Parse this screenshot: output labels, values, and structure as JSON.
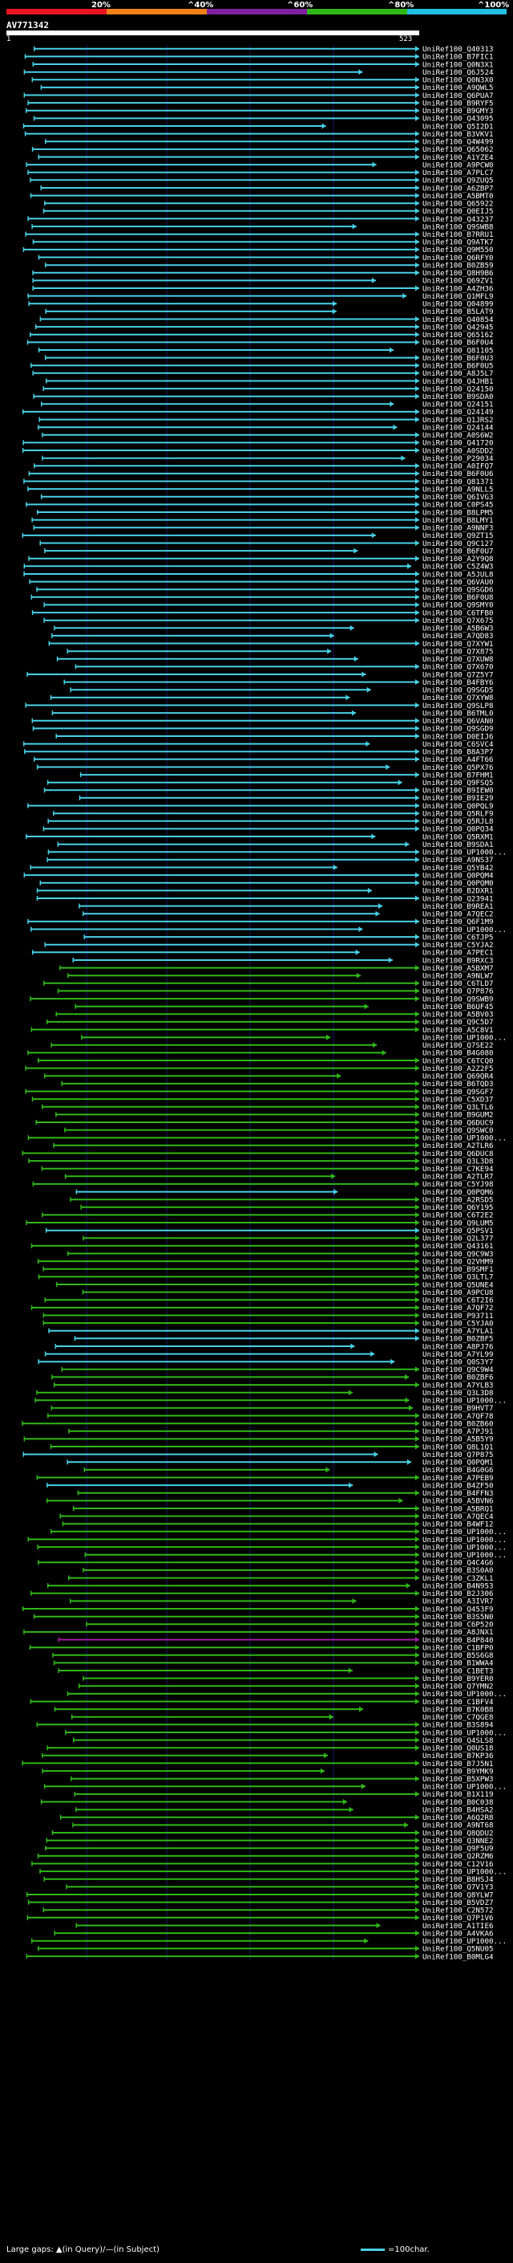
{
  "colors": {
    "identity_bands": [
      "#e8141e",
      "#f08018",
      "#8020a0",
      "#30b818",
      "#20c0e0"
    ],
    "hit_high": "#48d1e6",
    "hit_mid": "#30b818",
    "hit_low": "#a020a0",
    "guide": "#1a1a6e"
  },
  "colorbar": {
    "labels": [
      "20%",
      "^40%",
      "^60%",
      "^80%",
      "^100%"
    ]
  },
  "query": {
    "name": "AV771342",
    "start": "1",
    "end": "523"
  },
  "footer": {
    "legend": "Large gaps: ▲(in Query)/—(in Subject)",
    "scale": "=100char."
  },
  "hits": [
    [
      "UniRef100_Q40313",
      "c"
    ],
    [
      "UniRef100_B7FIC1",
      "c"
    ],
    [
      "UniRef100_Q0N3X1",
      "c"
    ],
    [
      "UniRef100_Q6J524",
      "c"
    ],
    [
      "UniRef100_Q0N3X0",
      "c"
    ],
    [
      "UniRef100_A9QWL5",
      "c"
    ],
    [
      "UniRef100_Q6PUA7",
      "c"
    ],
    [
      "UniRef100_B9RYF5",
      "c"
    ],
    [
      "UniRef100_B9GMY3",
      "c"
    ],
    [
      "UniRef100_Q43095",
      "c"
    ],
    [
      "UniRef100_Q5I2D1",
      "c"
    ],
    [
      "UniRef100_B3VKV1",
      "c"
    ],
    [
      "UniRef100_Q4W499",
      "c"
    ],
    [
      "UniRef100_Q65062",
      "c"
    ],
    [
      "UniRef100_A1YZE4",
      "c"
    ],
    [
      "UniRef100_A9PCW0",
      "c"
    ],
    [
      "UniRef100_A7PLC7",
      "c"
    ],
    [
      "UniRef100_Q9ZUQ5",
      "c"
    ],
    [
      "UniRef100_A6ZBP7",
      "c"
    ],
    [
      "UniRef100_A5BMT0",
      "c"
    ],
    [
      "UniRef100_Q65922",
      "c"
    ],
    [
      "UniRef100_Q0EIJ5",
      "c"
    ],
    [
      "UniRef100_Q43237",
      "c"
    ],
    [
      "UniRef100_Q9SWB8",
      "c"
    ],
    [
      "UniRef100_B7RRU1",
      "c"
    ],
    [
      "UniRef100_Q9ATK7",
      "c"
    ],
    [
      "UniRef100_Q9M550",
      "c"
    ],
    [
      "UniRef100_Q6RFY0",
      "c"
    ],
    [
      "UniRef100_B0ZB59",
      "c"
    ],
    [
      "UniRef100_Q8H9B6",
      "c"
    ],
    [
      "UniRef100_Q69ZV1",
      "c"
    ],
    [
      "UniRef100_A4ZH36",
      "c"
    ],
    [
      "UniRef100_Q1MFL9",
      "c"
    ],
    [
      "UniRef100_Q04899",
      "c"
    ],
    [
      "UniRef100_B5LAT9",
      "c"
    ],
    [
      "UniRef100_Q40854",
      "c"
    ],
    [
      "UniRef100_Q42945",
      "c"
    ],
    [
      "UniRef100_Q65162",
      "c"
    ],
    [
      "UniRef100_B6F0U4",
      "c"
    ],
    [
      "UniRef100_Q81105",
      "c"
    ],
    [
      "UniRef100_B6F0U3",
      "c"
    ],
    [
      "UniRef100_B6F0U5",
      "c"
    ],
    [
      "UniRef100_A8J5L7",
      "c"
    ],
    [
      "UniRef100_Q4JHB1",
      "c"
    ],
    [
      "UniRef100_Q24150",
      "c"
    ],
    [
      "UniRef100_B9SDA0",
      "c"
    ],
    [
      "UniRef100_Q24151",
      "c"
    ],
    [
      "UniRef100_Q24149",
      "c"
    ],
    [
      "UniRef100_Q1JRS2",
      "c"
    ],
    [
      "UniRef100_Q24144",
      "c"
    ],
    [
      "UniRef100_A0S6W2",
      "c"
    ],
    [
      "UniRef100_Q41720",
      "c"
    ],
    [
      "UniRef100_A0SDD2",
      "c"
    ],
    [
      "UniRef100_P29034",
      "c"
    ],
    [
      "UniRef100_A0IFQ7",
      "c"
    ],
    [
      "UniRef100_B6F0U6",
      "c"
    ],
    [
      "UniRef100_Q81371",
      "c"
    ],
    [
      "UniRef100_A9NLL5",
      "c"
    ],
    [
      "UniRef100_Q6IVG3",
      "c"
    ],
    [
      "UniRef100_C0PS45",
      "c"
    ],
    [
      "UniRef100_B8LPM5",
      "c"
    ],
    [
      "UniRef100_B8LMY1",
      "c"
    ],
    [
      "UniRef100_A9NNF3",
      "c"
    ],
    [
      "UniRef100_Q9ZT15",
      "c"
    ],
    [
      "UniRef100_Q9C127",
      "c"
    ],
    [
      "UniRef100_B6F0U7",
      "c"
    ],
    [
      "UniRef100_A2Y9Q8",
      "c"
    ],
    [
      "UniRef100_C5Z4W3",
      "c"
    ],
    [
      "UniRef100_A5JUL8",
      "c"
    ],
    [
      "UniRef100_Q6VAU0",
      "c"
    ],
    [
      "UniRef100_Q9SGD6",
      "c"
    ],
    [
      "UniRef100_B6F0U8",
      "c"
    ],
    [
      "UniRef100_Q9SMY0",
      "c"
    ],
    [
      "UniRef100_C6TFB0",
      "c"
    ],
    [
      "UniRef100_Q7X675",
      "c"
    ],
    [
      "UniRef100_A5B6W3",
      "c"
    ],
    [
      "UniRef100_A7QD83",
      "c"
    ],
    [
      "UniRef100_Q7XYW1",
      "c"
    ],
    [
      "UniRef100_Q7X875",
      "c"
    ],
    [
      "UniRef100_Q7XUW8",
      "c"
    ],
    [
      "UniRef100_Q7X670",
      "c"
    ],
    [
      "UniRef100_Q7Z5Y7",
      "c"
    ],
    [
      "UniRef100_B4FBY6",
      "c"
    ],
    [
      "UniRef100_Q9SGD5",
      "c"
    ],
    [
      "UniRef100_Q7XYW8",
      "c"
    ],
    [
      "UniRef100_Q9SLP8",
      "c"
    ],
    [
      "UniRef100_B6TML0",
      "c"
    ],
    [
      "UniRef100_Q6VAN0",
      "c"
    ],
    [
      "UniRef100_Q9SGD9",
      "c"
    ],
    [
      "UniRef100_D0EIJ6",
      "c"
    ],
    [
      "UniRef100_C6SVC4",
      "c"
    ],
    [
      "UniRef100_B8A3P7",
      "c"
    ],
    [
      "UniRef100_A4FT66",
      "c"
    ],
    [
      "UniRef100_Q5PX76",
      "c"
    ],
    [
      "UniRef100_B7FHM1",
      "c"
    ],
    [
      "UniRef100_Q9FSQ5",
      "c"
    ],
    [
      "UniRef100_B9IEW0",
      "c"
    ],
    [
      "UniRef100_B9IE29",
      "c"
    ],
    [
      "UniRef100_Q0PQL9",
      "c"
    ],
    [
      "UniRef100_Q5RLF9",
      "c"
    ],
    [
      "UniRef100_Q5RJL8",
      "c"
    ],
    [
      "UniRef100_Q0PQ34",
      "c"
    ],
    [
      "UniRef100_Q5RXM1",
      "c"
    ],
    [
      "UniRef100_B9SDA1",
      "c"
    ],
    [
      "UniRef100_UP1000...",
      "c"
    ],
    [
      "UniRef100_A9NS37",
      "c"
    ],
    [
      "UniRef100_Q5YB42",
      "c"
    ],
    [
      "UniRef100_Q0PQM4",
      "c"
    ],
    [
      "UniRef100_Q0PQM0",
      "c"
    ],
    [
      "UniRef100_B2DXR1",
      "c"
    ],
    [
      "UniRef100_Q23941",
      "c"
    ],
    [
      "UniRef100_B9REA1",
      "c"
    ],
    [
      "UniRef100_A7QEC2",
      "c"
    ],
    [
      "UniRef100_Q6F1M9",
      "c"
    ],
    [
      "UniRef100_UP1000...",
      "c"
    ],
    [
      "UniRef100_C6TJP5",
      "c"
    ],
    [
      "UniRef100_C5YJA2",
      "c"
    ],
    [
      "UniRef100_A7PEC1",
      "c"
    ],
    [
      "UniRef100_B9RXC3",
      "c"
    ],
    [
      "UniRef100_A5BXM7",
      "g"
    ],
    [
      "UniRef100_A9NLW7",
      "g"
    ],
    [
      "UniRef100_C6TLD7",
      "g"
    ],
    [
      "UniRef100_Q7P876",
      "g"
    ],
    [
      "UniRef100_Q9SWB9",
      "g"
    ],
    [
      "UniRef100_B6UF45",
      "g"
    ],
    [
      "UniRef100_A5BV03",
      "g"
    ],
    [
      "UniRef100_Q9C5D7",
      "g"
    ],
    [
      "UniRef100_A5C8V1",
      "g"
    ],
    [
      "UniRef100_UP1000...",
      "g"
    ],
    [
      "UniRef100_Q7SE22",
      "g"
    ],
    [
      "UniRef100_B4G080",
      "g"
    ],
    [
      "UniRef100_C6TCQ0",
      "g"
    ],
    [
      "UniRef100_A2Z2F5",
      "g"
    ],
    [
      "UniRef100_Q69QR4",
      "g"
    ],
    [
      "UniRef100_B6TQD3",
      "g"
    ],
    [
      "UniRef100_Q9SGF7",
      "g"
    ],
    [
      "UniRef100_C5XD37",
      "g"
    ],
    [
      "UniRef100_Q3LTL6",
      "g"
    ],
    [
      "UniRef100_B9GUM2",
      "g"
    ],
    [
      "UniRef100_Q6DUC9",
      "g"
    ],
    [
      "UniRef100_Q9SWC0",
      "g"
    ],
    [
      "UniRef100_UP1000...",
      "g"
    ],
    [
      "UniRef100_A2TLR6",
      "g"
    ],
    [
      "UniRef100_Q6DUC8",
      "g"
    ],
    [
      "UniRef100_Q3L3D8",
      "g"
    ],
    [
      "UniRef100_C7KE94",
      "g"
    ],
    [
      "UniRef100_A2TLR7",
      "g"
    ],
    [
      "UniRef100_C5YJ98",
      "g"
    ],
    [
      "UniRef100_Q0PQM6",
      "c"
    ],
    [
      "UniRef100_A2RSD5",
      "g"
    ],
    [
      "UniRef100_Q6Y195",
      "g"
    ],
    [
      "UniRef100_C6T2E2",
      "g"
    ],
    [
      "UniRef100_Q9LUM5",
      "g"
    ],
    [
      "UniRef100_Q5PSV1",
      "c"
    ],
    [
      "UniRef100_Q2L377",
      "g"
    ],
    [
      "UniRef100_Q43161",
      "g"
    ],
    [
      "UniRef100_Q9C9W3",
      "g"
    ],
    [
      "UniRef100_Q2VHM9",
      "g"
    ],
    [
      "UniRef100_B9SMF1",
      "g"
    ],
    [
      "UniRef100_Q3LTL7",
      "g"
    ],
    [
      "UniRef100_Q5UNE4",
      "g"
    ],
    [
      "UniRef100_A9PCU8",
      "g"
    ],
    [
      "UniRef100_C6T2I6",
      "g"
    ],
    [
      "UniRef100_A7QF72",
      "g"
    ],
    [
      "UniRef100_P93711",
      "g"
    ],
    [
      "UniRef100_C5YJA0",
      "g"
    ],
    [
      "UniRef100_A7YLA1",
      "c"
    ],
    [
      "UniRef100_B0ZBF5",
      "c"
    ],
    [
      "UniRef100_A8PJ76",
      "c"
    ],
    [
      "UniRef100_A7YL99",
      "c"
    ],
    [
      "UniRef100_Q0S3Y7",
      "c"
    ],
    [
      "UniRef100_Q9C9W4",
      "g"
    ],
    [
      "UniRef100_B0ZBF6",
      "g"
    ],
    [
      "UniRef100_A7YLB3",
      "g"
    ],
    [
      "UniRef100_Q3L3D8",
      "g"
    ],
    [
      "UniRef100_UP1000...",
      "g"
    ],
    [
      "UniRef100_B9HVT7",
      "g"
    ],
    [
      "UniRef100_A7QF78",
      "g"
    ],
    [
      "UniRef100_B0ZB60",
      "g"
    ],
    [
      "UniRef100_A7PJ91",
      "g"
    ],
    [
      "UniRef100_A5B5Y9",
      "g"
    ],
    [
      "UniRef100_Q8L1Q1",
      "g"
    ],
    [
      "UniRef100_Q7P875",
      "c"
    ],
    [
      "UniRef100_Q0PQM1",
      "c"
    ],
    [
      "UniRef100_B4G0G6",
      "g"
    ],
    [
      "UniRef100_A7PEB9",
      "g"
    ],
    [
      "UniRef100_B4ZF50",
      "c"
    ],
    [
      "UniRef100_B4FFN3",
      "g"
    ],
    [
      "UniRef100_A5BVN6",
      "g"
    ],
    [
      "UniRef100_A5BRQ1",
      "g"
    ],
    [
      "UniRef100_A7QEC4",
      "g"
    ],
    [
      "UniRef100_B4WF12",
      "g"
    ],
    [
      "UniRef100_UP1000...",
      "g"
    ],
    [
      "UniRef100_UP1000...",
      "g"
    ],
    [
      "UniRef100_UP1000...",
      "g"
    ],
    [
      "UniRef100_UP1000...",
      "g"
    ],
    [
      "UniRef100_Q4C4G6",
      "g"
    ],
    [
      "UniRef100_B3S0A0",
      "g"
    ],
    [
      "UniRef100_C3ZKL1",
      "g"
    ],
    [
      "UniRef100_B4N953",
      "g"
    ],
    [
      "UniRef100_B2J306",
      "g"
    ],
    [
      "UniRef100_A3IVR7",
      "g"
    ],
    [
      "UniRef100_Q453F9",
      "g"
    ],
    [
      "UniRef100_B3S5N0",
      "g"
    ],
    [
      "UniRef100_C6P520",
      "g"
    ],
    [
      "UniRef100_A8JNX1",
      "g"
    ],
    [
      "UniRef100_B4P840",
      "m"
    ],
    [
      "UniRef100_C1BFP0",
      "g"
    ],
    [
      "UniRef100_B5S6G8",
      "g"
    ],
    [
      "UniRef100_B1WWA4",
      "g"
    ],
    [
      "UniRef100_C1BET3",
      "g"
    ],
    [
      "UniRef100_B9YER0",
      "g"
    ],
    [
      "UniRef100_Q7YMN2",
      "g"
    ],
    [
      "UniRef100_UP1000...",
      "g"
    ],
    [
      "UniRef100_C1BFV4",
      "g"
    ],
    [
      "UniRef100_B7K0B8",
      "g"
    ],
    [
      "UniRef100_C7QGE8",
      "g"
    ],
    [
      "UniRef100_B3S894",
      "g"
    ],
    [
      "UniRef100_UP1000...",
      "g"
    ],
    [
      "UniRef100_Q4SLS8",
      "g"
    ],
    [
      "UniRef100_Q0US18",
      "g"
    ],
    [
      "UniRef100_B7KP36",
      "g"
    ],
    [
      "UniRef100_B7J5N1",
      "g"
    ],
    [
      "UniRef100_B9YMK9",
      "g"
    ],
    [
      "UniRef100_B5XPW3",
      "g"
    ],
    [
      "UniRef100_UP1000...",
      "g"
    ],
    [
      "UniRef100_B1X119",
      "g"
    ],
    [
      "UniRef100_B0C038",
      "g"
    ],
    [
      "UniRef100_B4HSA2",
      "g"
    ],
    [
      "UniRef100_A6Q2R8",
      "g"
    ],
    [
      "UniRef100_A9NT68",
      "g"
    ],
    [
      "UniRef100_Q8QDU2",
      "g"
    ],
    [
      "UniRef100_Q3NNE2",
      "g"
    ],
    [
      "UniRef100_Q9F5U9",
      "g"
    ],
    [
      "UniRef100_Q2RZM6",
      "g"
    ],
    [
      "UniRef100_C12V16",
      "g"
    ],
    [
      "UniRef100_UP1000...",
      "g"
    ],
    [
      "UniRef100_B8HSJ4",
      "g"
    ],
    [
      "UniRef100_Q7V1Y3",
      "g"
    ],
    [
      "UniRef100_Q8YLW7",
      "g"
    ],
    [
      "UniRef100_B5VDZ7",
      "g"
    ],
    [
      "UniRef100_C2N572",
      "g"
    ],
    [
      "UniRef100_Q7P1V6",
      "g"
    ],
    [
      "UniRef100_A1TIE6",
      "g"
    ],
    [
      "UniRef100_A4VKA6",
      "g"
    ],
    [
      "UniRef100_UP1000...",
      "g"
    ],
    [
      "UniRef100_Q5NU05",
      "g"
    ],
    [
      "UniRef100_B0MLG4",
      "g"
    ]
  ]
}
